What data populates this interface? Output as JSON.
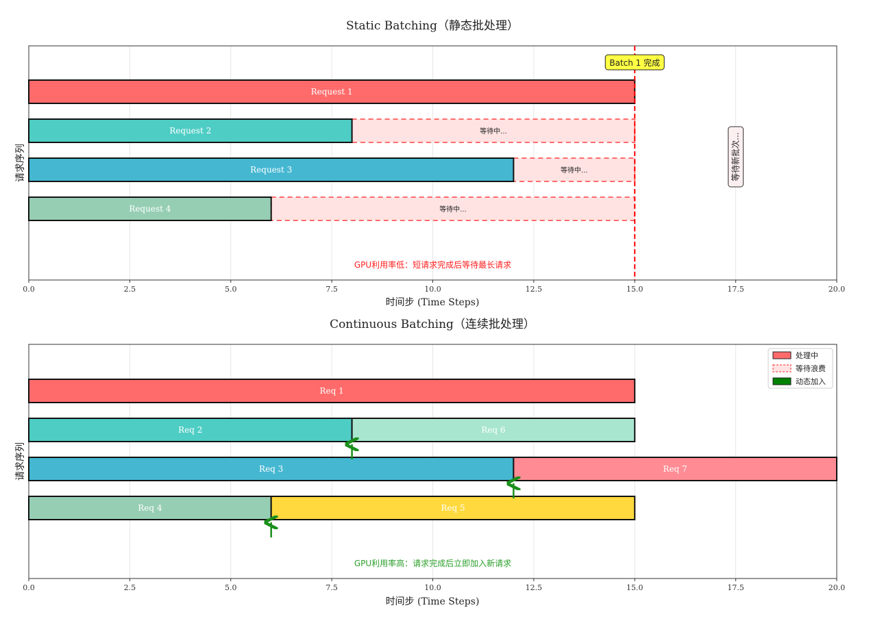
{
  "chart_data": [
    {
      "id": "static",
      "type": "bar",
      "title": "Static Batching（静态批处理）",
      "xlabel": "时间步 (Time Steps)",
      "ylabel": "请求序列",
      "xlim": [
        0,
        20
      ],
      "xticks": [
        "0.0",
        "2.5",
        "5.0",
        "7.5",
        "10.0",
        "12.5",
        "15.0",
        "17.5",
        "20.0"
      ],
      "grid": true,
      "bars": [
        {
          "label": "Request 1",
          "row": 0,
          "start": 0,
          "end": 15,
          "color": "#FF6B6B"
        },
        {
          "label": "Request 2",
          "row": 1,
          "start": 0,
          "end": 8,
          "color": "#4ECDC4"
        },
        {
          "label": "Request 3",
          "row": 2,
          "start": 0,
          "end": 12,
          "color": "#45B7D1"
        },
        {
          "label": "Request 4",
          "row": 3,
          "start": 0,
          "end": 6,
          "color": "#96CEB4"
        }
      ],
      "waits": [
        {
          "label": "等待中...",
          "row": 1,
          "start": 8,
          "end": 15
        },
        {
          "label": "等待中...",
          "row": 2,
          "start": 12,
          "end": 15
        },
        {
          "label": "等待中...",
          "row": 3,
          "start": 6,
          "end": 15
        }
      ],
      "vline": {
        "x": 15,
        "label": "Batch 1 完成"
      },
      "side_note": {
        "x": 17.5,
        "label": "等待新批次..."
      },
      "note": {
        "x": 10,
        "text": "GPU利用率低：短请求完成后等待最长请求",
        "color": "#FF2020"
      }
    },
    {
      "id": "continuous",
      "type": "bar",
      "title": "Continuous Batching（连续批处理）",
      "xlabel": "时间步 (Time Steps)",
      "ylabel": "请求序列",
      "xlim": [
        0,
        20
      ],
      "xticks": [
        "0.0",
        "2.5",
        "5.0",
        "7.5",
        "10.0",
        "12.5",
        "15.0",
        "17.5",
        "20.0"
      ],
      "grid": true,
      "bars": [
        {
          "label": "Req 1",
          "row": 0,
          "start": 0,
          "end": 15,
          "color": "#FF6B6B"
        },
        {
          "label": "Req 2",
          "row": 1,
          "start": 0,
          "end": 8,
          "color": "#4ECDC4"
        },
        {
          "label": "Req 6",
          "row": 1,
          "start": 8,
          "end": 15,
          "color": "#A8E6CF"
        },
        {
          "label": "Req 3",
          "row": 2,
          "start": 0,
          "end": 12,
          "color": "#45B7D1"
        },
        {
          "label": "Req 7",
          "row": 2,
          "start": 12,
          "end": 20,
          "color": "#FF8B94"
        },
        {
          "label": "Req 4",
          "row": 3,
          "start": 0,
          "end": 6,
          "color": "#96CEB4"
        },
        {
          "label": "Req 5",
          "row": 3,
          "start": 6,
          "end": 15,
          "color": "#FFD93D"
        }
      ],
      "arrows": [
        {
          "x": 8,
          "row": 1
        },
        {
          "x": 12,
          "row": 2
        },
        {
          "x": 6,
          "row": 3
        }
      ],
      "legend": {
        "position": "top-right",
        "entries": [
          {
            "label": "处理中",
            "kind": "solid",
            "color": "#FF6B6B"
          },
          {
            "label": "等待浪费",
            "kind": "dashed",
            "color": "#FF6B6B"
          },
          {
            "label": "动态加入",
            "kind": "solid",
            "color": "#008000"
          }
        ]
      },
      "note": {
        "x": 10,
        "text": "GPU利用率高：请求完成后立即加入新请求",
        "color": "#2CA02C"
      }
    }
  ]
}
